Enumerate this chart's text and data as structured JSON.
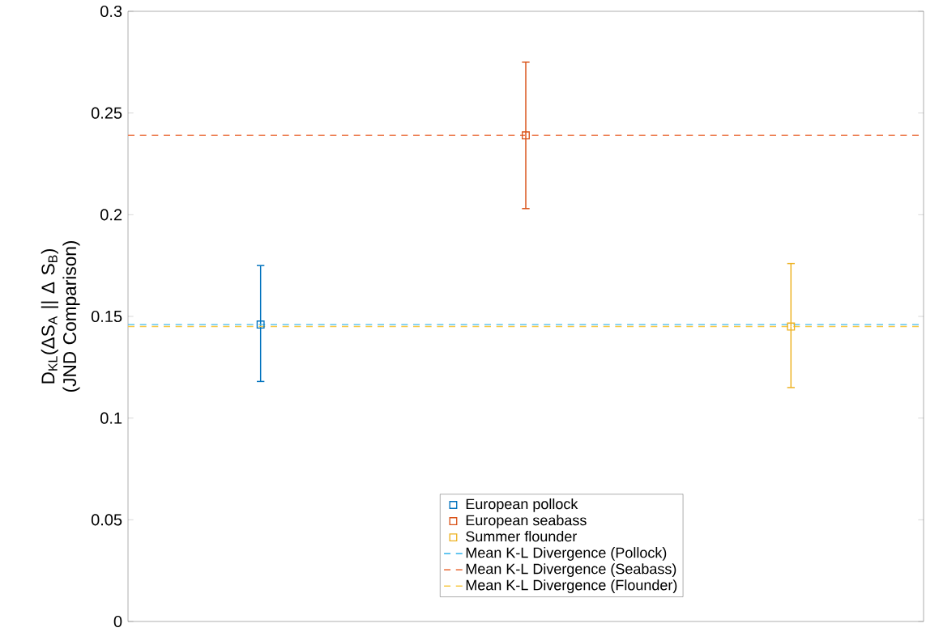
{
  "chart_data": {
    "type": "scatter",
    "ylabel": "D$_{KL}$(ΔS$_{A}$ || Δ S$_{B}$) (JND Comparison)",
    "categories": [
      null,
      null,
      null
    ],
    "ylim": [
      0,
      0.3
    ],
    "yticks": [
      0,
      0.05,
      0.1,
      0.15,
      0.2,
      0.25,
      0.3
    ],
    "tick_labels": "y",
    "marker": "square",
    "legend": "bottom",
    "series": [
      {
        "name": "European pollock",
        "color": "#0072bd",
        "values": [
          0.146,
          null,
          null
        ],
        "errors": [
          [
            0.118,
            0.175
          ],
          null,
          null
        ]
      },
      {
        "name": "European seabass",
        "color": "#d95319",
        "values": [
          null,
          0.239,
          null
        ],
        "errors": [
          null,
          [
            0.203,
            0.275
          ],
          null
        ]
      },
      {
        "name": "Summer flounder",
        "color": "#edb120",
        "values": [
          null,
          null,
          0.145
        ],
        "errors": [
          null,
          null,
          [
            0.115,
            0.176
          ]
        ]
      }
    ],
    "ref_lines": [
      {
        "axis": "y",
        "value": 0.146,
        "label": "Mean K-L Divergence (Pollock)",
        "color": "#4dbeee",
        "line_style": "dashed"
      },
      {
        "axis": "y",
        "value": 0.239,
        "label": "Mean K-L Divergence (Seabass)",
        "color": "#ed7f52",
        "line_style": "dashed"
      },
      {
        "axis": "y",
        "value": 0.145,
        "label": "Mean K-L Divergence (Flounder)",
        "color": "#f7c948",
        "line_style": "dashed"
      }
    ]
  }
}
